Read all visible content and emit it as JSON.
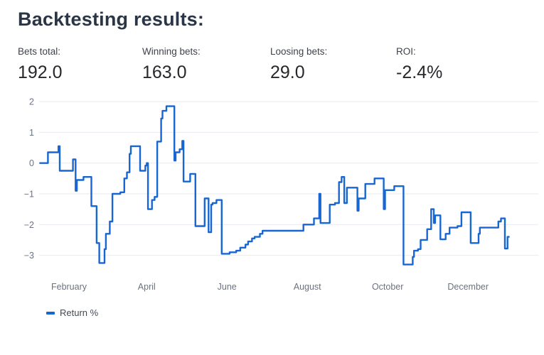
{
  "title": "Backtesting results:",
  "stats": [
    {
      "label": "Bets total:",
      "value": "192.0"
    },
    {
      "label": "Winning bets:",
      "value": "163.0"
    },
    {
      "label": "Loosing bets:",
      "value": "29.0"
    },
    {
      "label": "ROI:",
      "value": "-2.4%"
    }
  ],
  "colors": {
    "line": "#1766d1",
    "grid": "#e8eaf2",
    "tick_text": "#6b7280",
    "title_text": "#2a3647"
  },
  "chart_data": {
    "type": "line",
    "step": true,
    "xlabel": "",
    "ylabel": "",
    "grid": "horizontal",
    "legend_position": "bottom-left",
    "yticks": [
      {
        "v": 2,
        "label": "2"
      },
      {
        "v": 1,
        "label": "1"
      },
      {
        "v": 0,
        "label": "0"
      },
      {
        "v": -1,
        "label": "−1"
      },
      {
        "v": -2,
        "label": "−2"
      },
      {
        "v": -3,
        "label": "−3"
      }
    ],
    "xticks": [
      {
        "label": "February",
        "day": 32
      },
      {
        "label": "April",
        "day": 91
      },
      {
        "label": "June",
        "day": 152
      },
      {
        "label": "August",
        "day": 213
      },
      {
        "label": "October",
        "day": 274
      },
      {
        "label": "December",
        "day": 335
      }
    ],
    "xlim_days": [
      9,
      389
    ],
    "ylim": [
      -3.6,
      2.3
    ],
    "series": [
      {
        "name": "Return %",
        "color": "#1766d1",
        "points": [
          [
            10,
            0
          ],
          [
            16,
            0.35
          ],
          [
            24,
            0.55
          ],
          [
            25,
            -0.25
          ],
          [
            35,
            0.12
          ],
          [
            37,
            -0.9
          ],
          [
            38,
            -0.55
          ],
          [
            43,
            -0.45
          ],
          [
            49,
            -1.4
          ],
          [
            53,
            -2.6
          ],
          [
            55,
            -3.25
          ],
          [
            59,
            -2.8
          ],
          [
            60,
            -2.3
          ],
          [
            63,
            -1.9
          ],
          [
            65,
            -1.0
          ],
          [
            71,
            -0.95
          ],
          [
            74,
            -0.5
          ],
          [
            76,
            -0.3
          ],
          [
            78,
            0.3
          ],
          [
            79,
            0.55
          ],
          [
            86,
            -0.25
          ],
          [
            90,
            -0.08
          ],
          [
            91,
            0.0
          ],
          [
            92,
            -1.5
          ],
          [
            95,
            -1.2
          ],
          [
            97,
            -1.1
          ],
          [
            99,
            0.7
          ],
          [
            102,
            1.45
          ],
          [
            103,
            1.7
          ],
          [
            106,
            1.85
          ],
          [
            112,
            0.08
          ],
          [
            113,
            0.35
          ],
          [
            116,
            0.45
          ],
          [
            118,
            0.72
          ],
          [
            119,
            -0.6
          ],
          [
            124,
            -0.35
          ],
          [
            128,
            -2.05
          ],
          [
            135,
            -1.15
          ],
          [
            138,
            -2.25
          ],
          [
            140,
            -1.35
          ],
          [
            141,
            -1.3
          ],
          [
            144,
            -1.2
          ],
          [
            148,
            -2.95
          ],
          [
            154,
            -2.9
          ],
          [
            159,
            -2.85
          ],
          [
            162,
            -2.75
          ],
          [
            166,
            -2.65
          ],
          [
            168,
            -2.55
          ],
          [
            171,
            -2.45
          ],
          [
            173,
            -2.4
          ],
          [
            177,
            -2.3
          ],
          [
            179,
            -2.2
          ],
          [
            210,
            -2.0
          ],
          [
            218,
            -1.8
          ],
          [
            222,
            -1.0
          ],
          [
            223,
            -1.95
          ],
          [
            230,
            -1.35
          ],
          [
            234,
            -1.3
          ],
          [
            237,
            -0.62
          ],
          [
            239,
            -0.45
          ],
          [
            241,
            -1.3
          ],
          [
            243,
            -0.8
          ],
          [
            251,
            -1.55
          ],
          [
            252,
            -1.15
          ],
          [
            257,
            -0.68
          ],
          [
            264,
            -0.5
          ],
          [
            271,
            -1.5
          ],
          [
            272,
            -0.88
          ],
          [
            279,
            -0.75
          ],
          [
            286,
            -3.3
          ],
          [
            293,
            -3.05
          ],
          [
            294,
            -2.85
          ],
          [
            297,
            -2.8
          ],
          [
            299,
            -2.5
          ],
          [
            304,
            -2.15
          ],
          [
            307,
            -1.5
          ],
          [
            309,
            -1.95
          ],
          [
            310,
            -1.7
          ],
          [
            314,
            -2.48
          ],
          [
            318,
            -2.3
          ],
          [
            321,
            -2.1
          ],
          [
            327,
            -2.05
          ],
          [
            330,
            -1.6
          ],
          [
            337,
            -2.6
          ],
          [
            343,
            -2.3
          ],
          [
            344,
            -2.1
          ],
          [
            358,
            -1.9
          ],
          [
            360,
            -1.8
          ],
          [
            363,
            -2.78
          ],
          [
            365,
            -2.4
          ],
          [
            366,
            -2.4
          ]
        ]
      }
    ]
  }
}
